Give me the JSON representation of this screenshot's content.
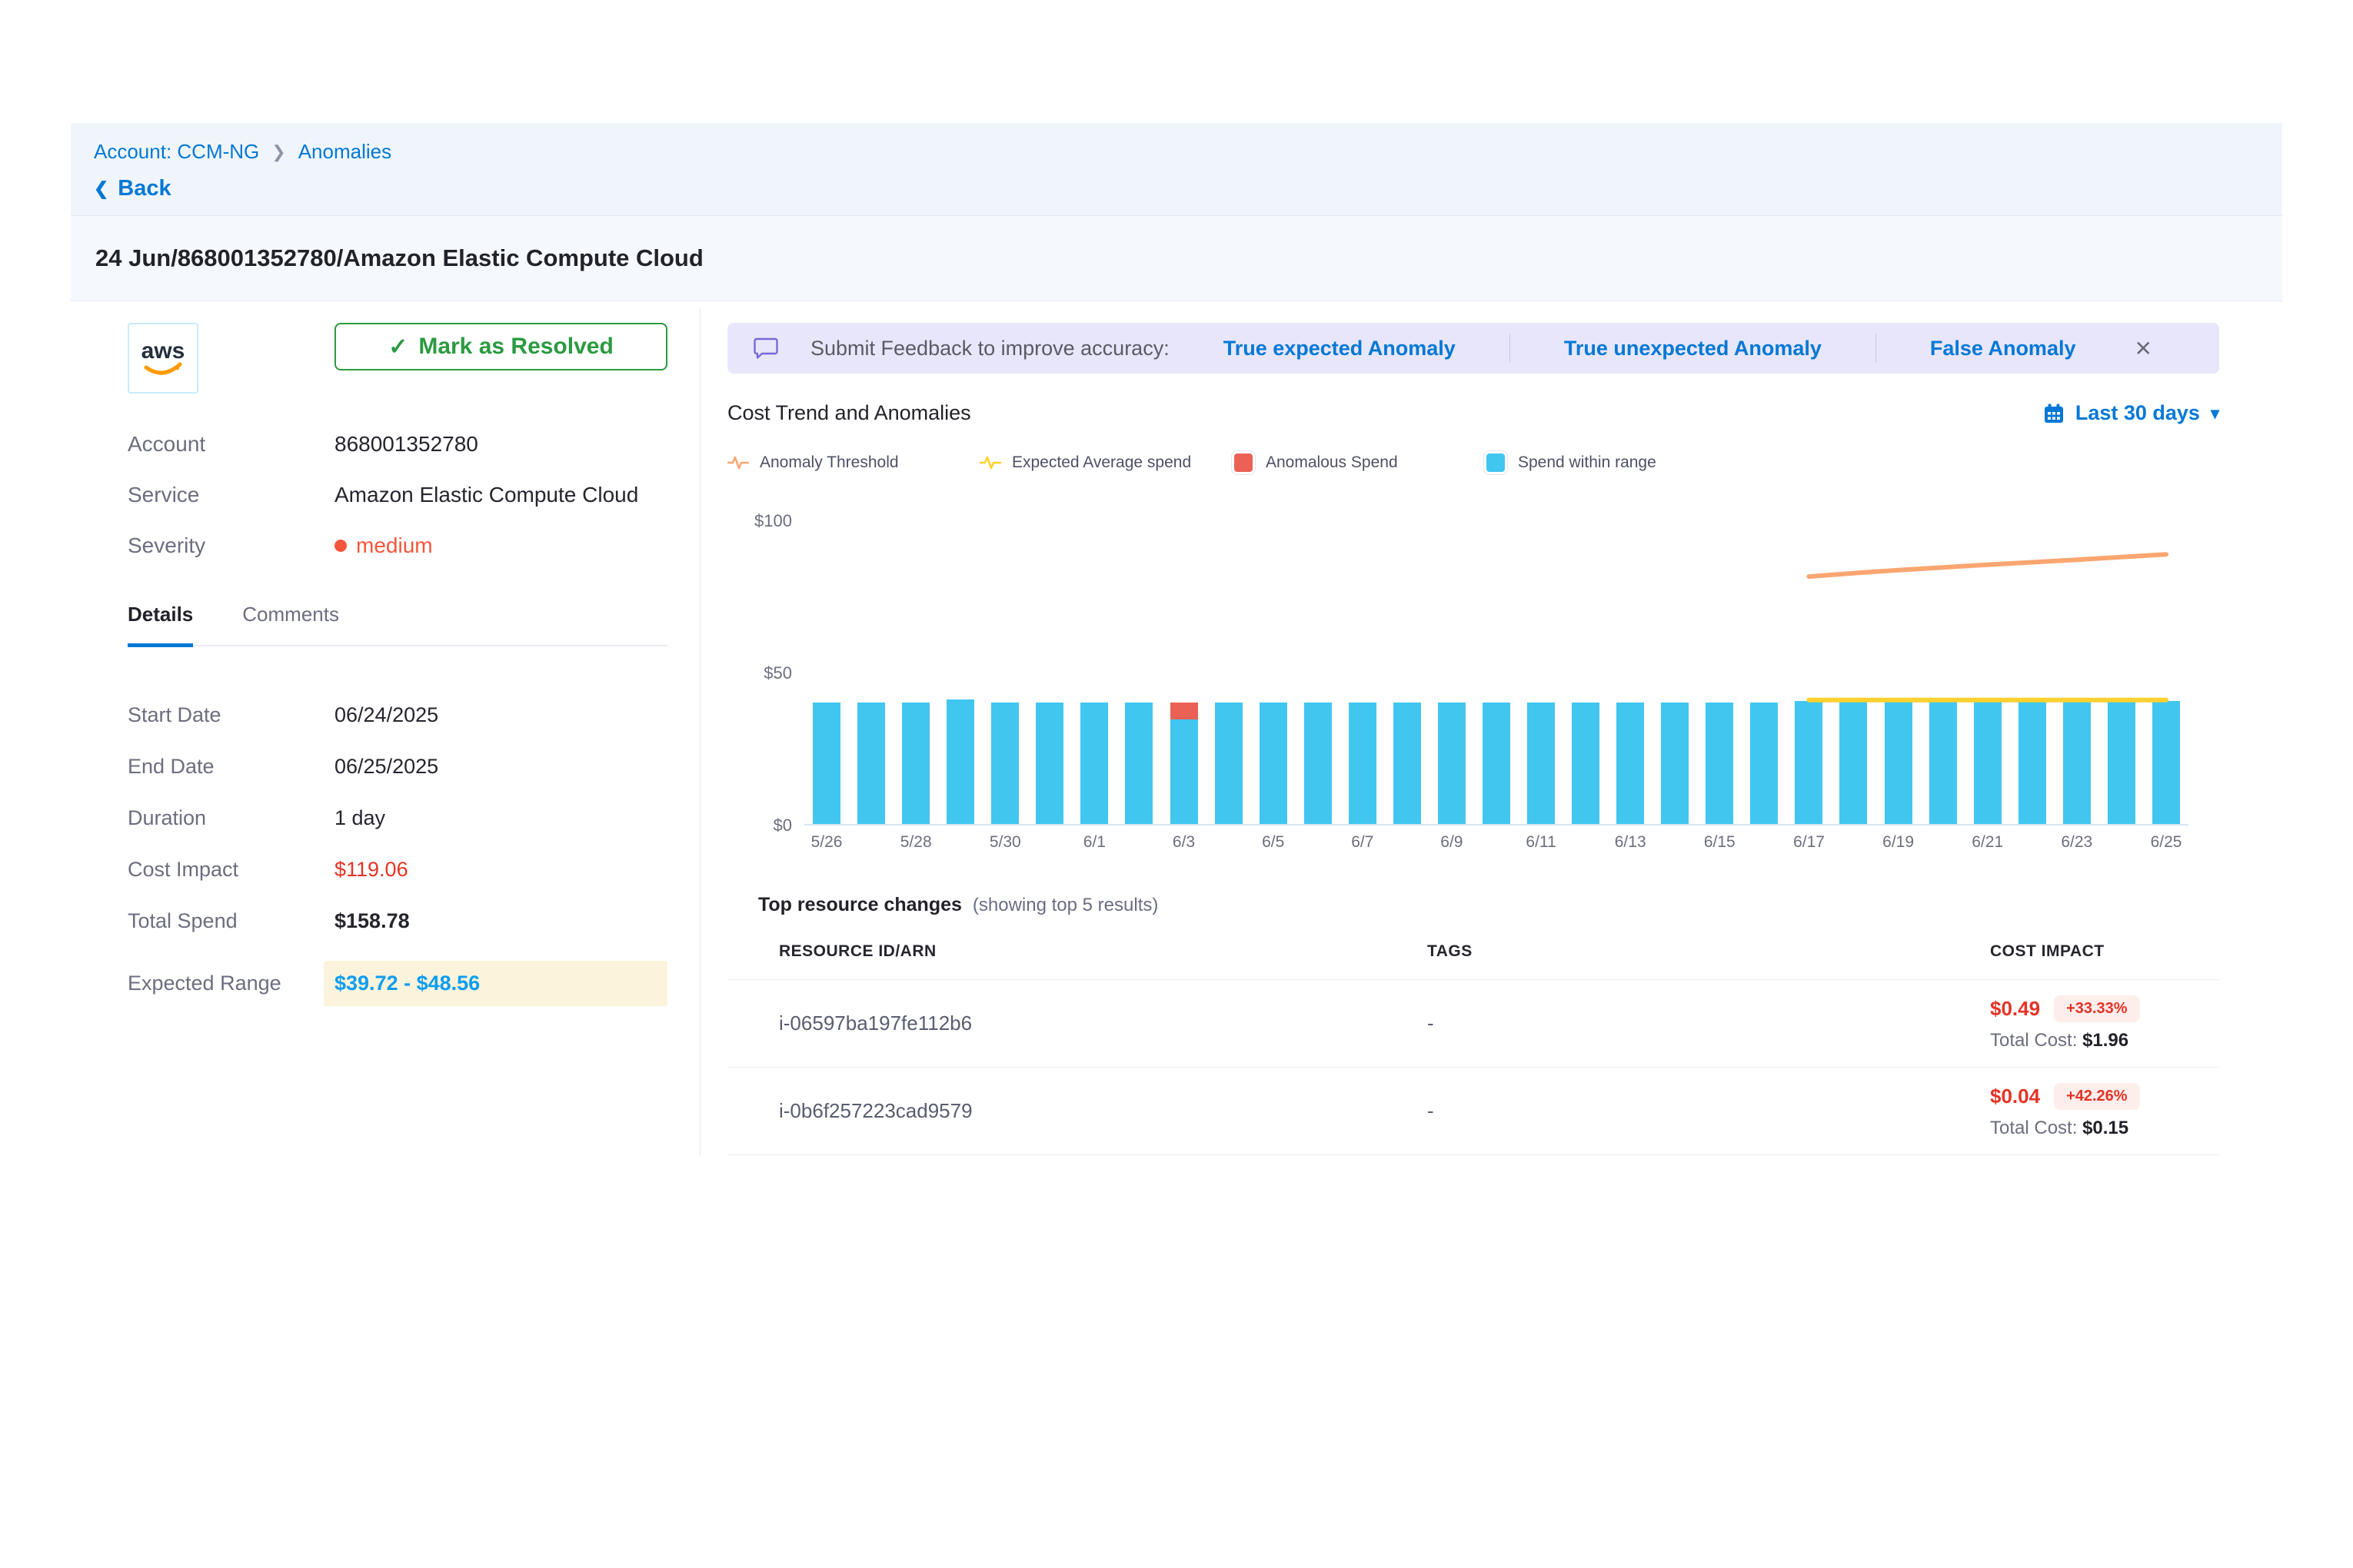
{
  "breadcrumb": {
    "account": "Account: CCM-NG",
    "page": "Anomalies",
    "back_label": "Back"
  },
  "page_title": "24 Jun/868001352780/Amazon Elastic Compute Cloud",
  "left_panel": {
    "provider": "aws",
    "resolve_button_label": "Mark as Resolved",
    "summary": [
      {
        "label": "Account",
        "value": "868001352780"
      },
      {
        "label": "Service",
        "value": "Amazon Elastic Compute Cloud"
      },
      {
        "label": "Severity",
        "value": "medium"
      }
    ],
    "tabs": [
      {
        "label": "Details",
        "active": true
      },
      {
        "label": "Comments",
        "active": false
      }
    ],
    "details": [
      {
        "label": "Start Date",
        "value": "06/24/2025"
      },
      {
        "label": "End Date",
        "value": "06/25/2025"
      },
      {
        "label": "Duration",
        "value": "1 day"
      },
      {
        "label": "Cost Impact",
        "value": "$119.06"
      },
      {
        "label": "Total Spend",
        "value": "$158.78"
      },
      {
        "label": "Expected Range",
        "value": "$39.72 - $48.56"
      }
    ]
  },
  "feedback_bar": {
    "prompt": "Submit Feedback to improve accuracy:",
    "actions": [
      "True expected Anomaly",
      "True unexpected Anomaly",
      "False Anomaly"
    ],
    "close_icon": "✕"
  },
  "chart_section": {
    "title": "Cost Trend and Anomalies",
    "time_range_label": "Last 30 days",
    "legend": [
      {
        "label": "Anomaly Threshold",
        "type": "line",
        "color": "#fba671"
      },
      {
        "label": "Expected Average spend",
        "type": "line",
        "color": "#fdd12e"
      },
      {
        "label": "Anomalous Spend",
        "type": "square",
        "color": "#ec6156"
      },
      {
        "label": "Spend within range",
        "type": "square",
        "color": "#41c6f0"
      }
    ]
  },
  "chart_data": {
    "type": "bar",
    "title": "Cost Trend and Anomalies",
    "ylim": [
      0,
      100
    ],
    "y_ticks": [
      "$0",
      "$50",
      "$100"
    ],
    "x": [
      "5/26",
      "5/27",
      "5/28",
      "5/29",
      "5/30",
      "5/31",
      "6/1",
      "6/2",
      "6/3",
      "6/4",
      "6/5",
      "6/6",
      "6/7",
      "6/8",
      "6/9",
      "6/10",
      "6/11",
      "6/12",
      "6/13",
      "6/14",
      "6/15",
      "6/16",
      "6/17",
      "6/18",
      "6/19",
      "6/20",
      "6/21",
      "6/22",
      "6/23",
      "6/24",
      "6/25"
    ],
    "x_tick_labels": [
      "5/26",
      "5/28",
      "5/30",
      "6/1",
      "6/3",
      "6/5",
      "6/7",
      "6/9",
      "6/11",
      "6/13",
      "6/15",
      "6/17",
      "6/19",
      "6/21",
      "6/23",
      "6/25"
    ],
    "series": [
      {
        "name": "Spend within range",
        "color": "#41c6f0",
        "values": [
          40,
          40,
          40,
          41,
          40,
          40,
          40,
          40,
          34.5,
          40,
          40,
          40,
          40,
          40,
          40,
          40,
          40,
          40,
          40,
          40,
          40,
          40,
          40.5,
          40.5,
          40.5,
          40.5,
          40.5,
          40.5,
          40.5,
          40.5,
          40.5
        ]
      },
      {
        "name": "Anomalous Spend",
        "color": "#ec6156",
        "values": [
          0,
          0,
          0,
          0,
          0,
          0,
          0,
          0,
          5.5,
          0,
          0,
          0,
          0,
          0,
          0,
          0,
          0,
          0,
          0,
          0,
          0,
          0,
          0,
          0,
          0,
          0,
          0,
          0,
          0,
          0,
          0
        ]
      }
    ],
    "lines": [
      {
        "name": "Anomaly Threshold",
        "color": "#fba671",
        "x_start": "6/17",
        "values": [
          81.5,
          82.6,
          83.6,
          84.5,
          85.4,
          86.2,
          87.0,
          87.9,
          88.8
        ]
      },
      {
        "name": "Expected Average spend",
        "color": "#fdd12e",
        "x_start": "6/17",
        "values": [
          40.8,
          40.8,
          40.8,
          40.8,
          40.8,
          40.8,
          40.8,
          40.8,
          40.8
        ]
      }
    ],
    "legend_position": "top",
    "grid": false
  },
  "table": {
    "title": "Top resource changes",
    "subtitle": "(showing top 5 results)",
    "columns": [
      "RESOURCE ID/ARN",
      "TAGS",
      "COST IMPACT"
    ],
    "rows": [
      {
        "resource_id": "i-06597ba197fe112b6",
        "tags": "-",
        "cost_impact": "$0.49",
        "change_pct": "+33.33%",
        "total_cost_label": "Total Cost:",
        "total_cost": "$1.96"
      },
      {
        "resource_id": "i-0b6f257223cad9579",
        "tags": "-",
        "cost_impact": "$0.04",
        "change_pct": "+42.26%",
        "total_cost_label": "Total Cost:",
        "total_cost": "$0.15"
      }
    ]
  }
}
